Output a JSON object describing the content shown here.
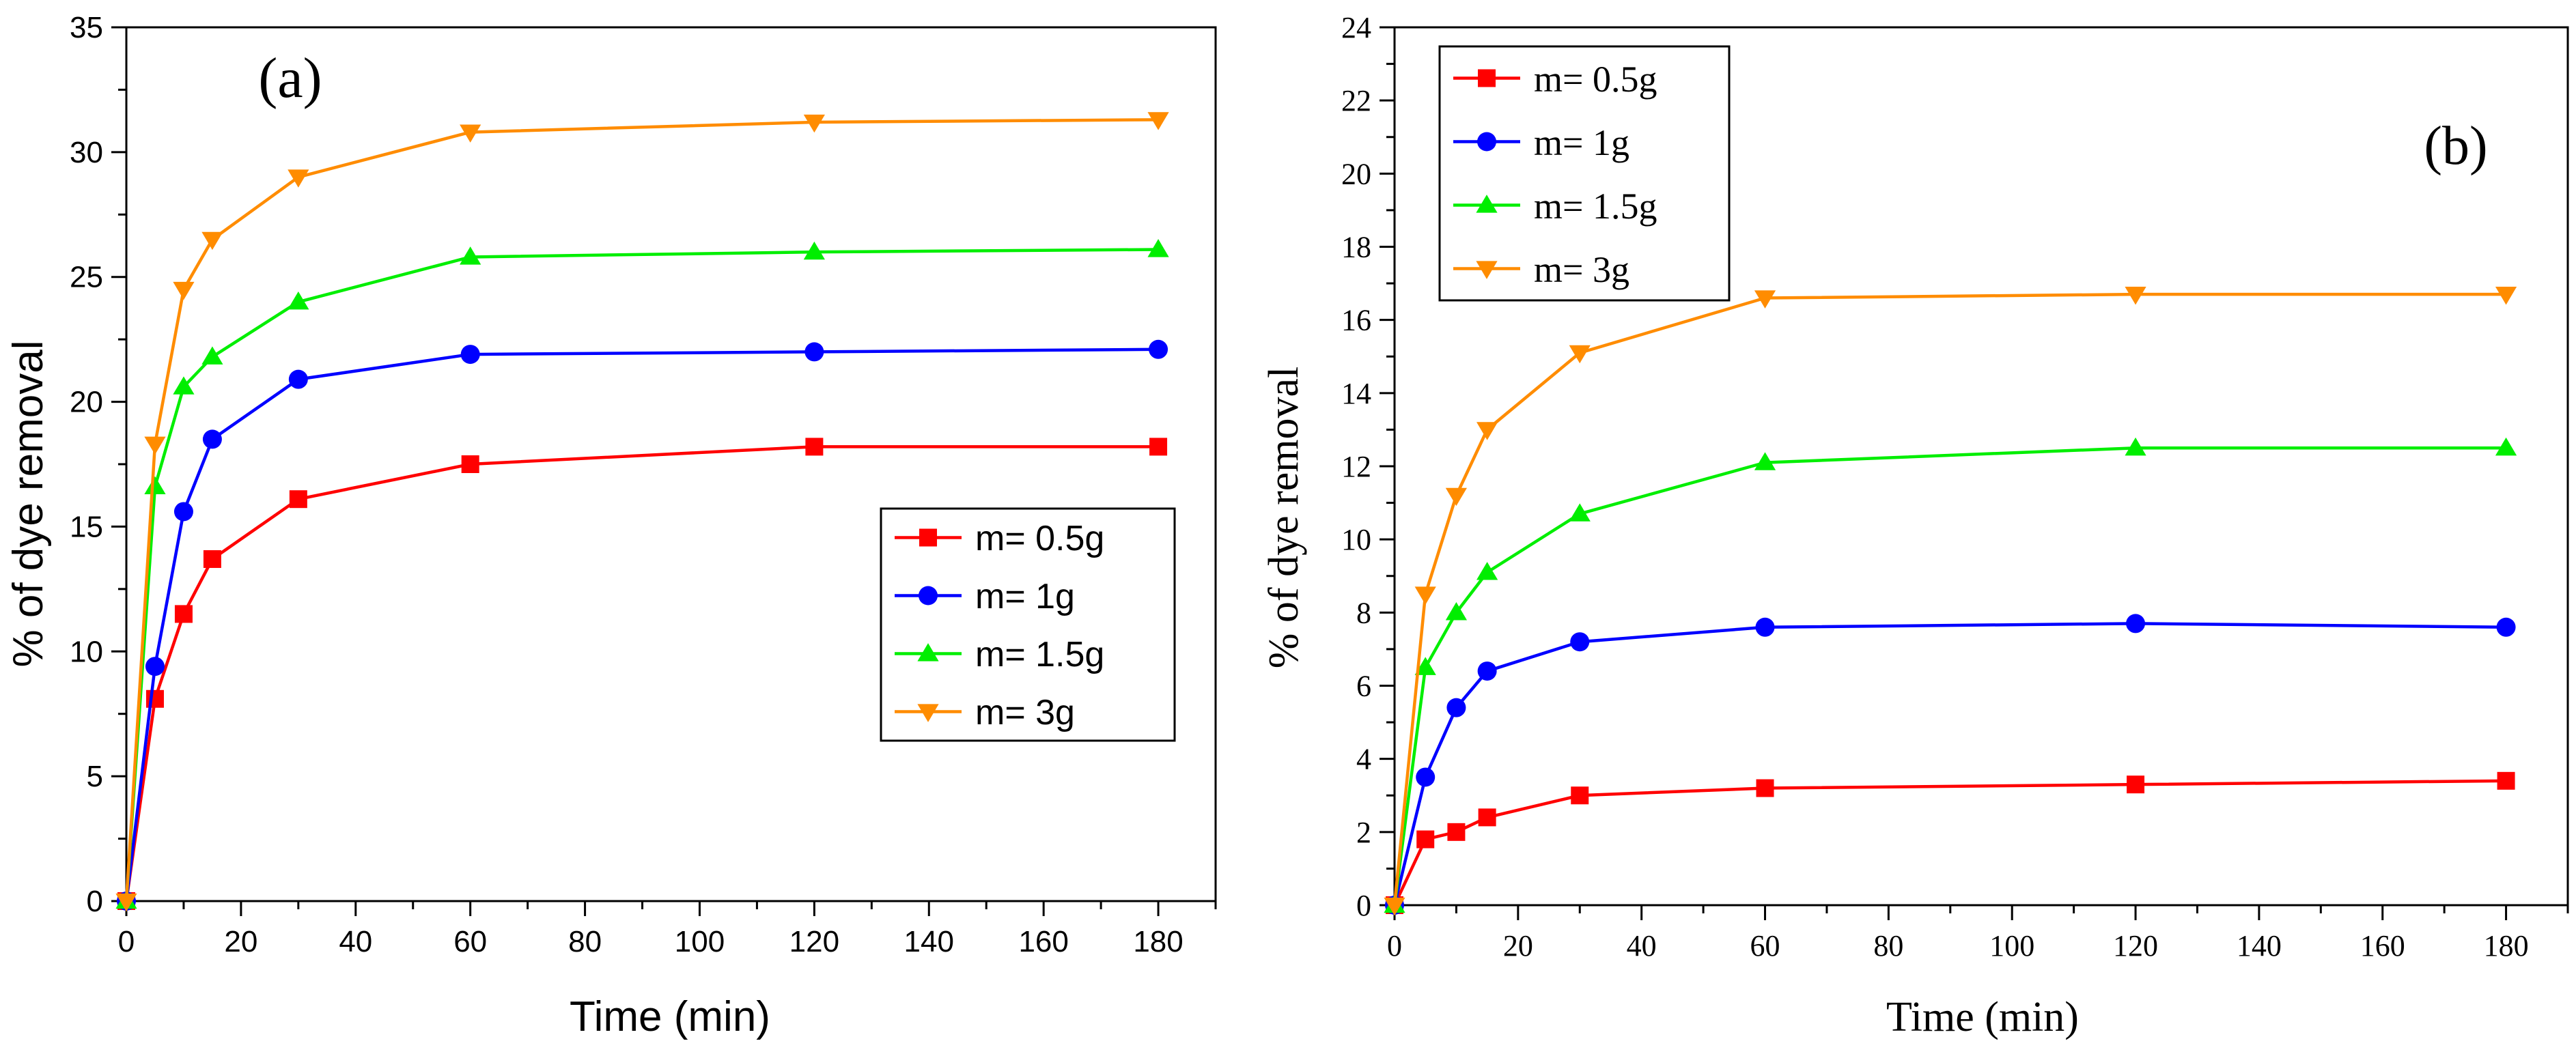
{
  "figure": {
    "title": ""
  },
  "chart_data": [
    {
      "type": "line",
      "panel_label": "(a)",
      "title": "",
      "xlabel": "Time (min)",
      "ylabel": "% of dye removal",
      "xlim": [
        0,
        190
      ],
      "ylim": [
        0,
        35
      ],
      "xticks": [
        0,
        20,
        40,
        60,
        80,
        100,
        120,
        140,
        160,
        180
      ],
      "yticks": [
        0,
        5,
        10,
        15,
        20,
        25,
        30,
        35
      ],
      "grid": false,
      "legend_position": "center-right",
      "x": [
        0,
        5,
        10,
        15,
        30,
        60,
        120,
        180
      ],
      "series": [
        {
          "name": "m= 0.5g",
          "color": "#ff0000",
          "marker": "square",
          "values": [
            0,
            8.1,
            11.5,
            13.7,
            16.1,
            17.5,
            18.2,
            18.2
          ]
        },
        {
          "name": "m= 1g",
          "color": "#0000ff",
          "marker": "circle",
          "values": [
            0,
            9.4,
            15.6,
            18.5,
            20.9,
            21.9,
            22.0,
            22.1
          ]
        },
        {
          "name": "m= 1.5g",
          "color": "#00ee00",
          "marker": "triangle-up",
          "values": [
            0,
            16.6,
            20.6,
            21.8,
            24.0,
            25.8,
            26.0,
            26.1
          ]
        },
        {
          "name": "m= 3g",
          "color": "#ff8c00",
          "marker": "triangle-down",
          "values": [
            0,
            18.3,
            24.5,
            26.5,
            29.0,
            30.8,
            31.2,
            31.3
          ]
        }
      ]
    },
    {
      "type": "line",
      "panel_label": "(b)",
      "title": "",
      "xlabel": "Time (min)",
      "ylabel": "% of dye removal",
      "xlim": [
        0,
        190
      ],
      "ylim": [
        0,
        24
      ],
      "xticks": [
        0,
        20,
        40,
        60,
        80,
        100,
        120,
        140,
        160,
        180
      ],
      "yticks": [
        0,
        2,
        4,
        6,
        8,
        10,
        12,
        14,
        16,
        18,
        20,
        22,
        24
      ],
      "grid": false,
      "legend_position": "top-left",
      "x": [
        0,
        5,
        10,
        15,
        30,
        60,
        120,
        180
      ],
      "series": [
        {
          "name": "m= 0.5g",
          "color": "#ff0000",
          "marker": "square",
          "values": [
            0,
            1.8,
            2.0,
            2.4,
            3.0,
            3.2,
            3.3,
            3.4
          ]
        },
        {
          "name": "m= 1g",
          "color": "#0000ff",
          "marker": "circle",
          "values": [
            0,
            3.5,
            5.4,
            6.4,
            7.2,
            7.6,
            7.7,
            7.6
          ]
        },
        {
          "name": "m= 1.5g",
          "color": "#00ee00",
          "marker": "triangle-up",
          "values": [
            0,
            6.5,
            8.0,
            9.1,
            10.7,
            12.1,
            12.5,
            12.5
          ]
        },
        {
          "name": "m= 3g",
          "color": "#ff8c00",
          "marker": "triangle-down",
          "values": [
            0,
            8.5,
            11.2,
            13.0,
            15.1,
            16.6,
            16.7,
            16.7
          ]
        }
      ]
    }
  ]
}
